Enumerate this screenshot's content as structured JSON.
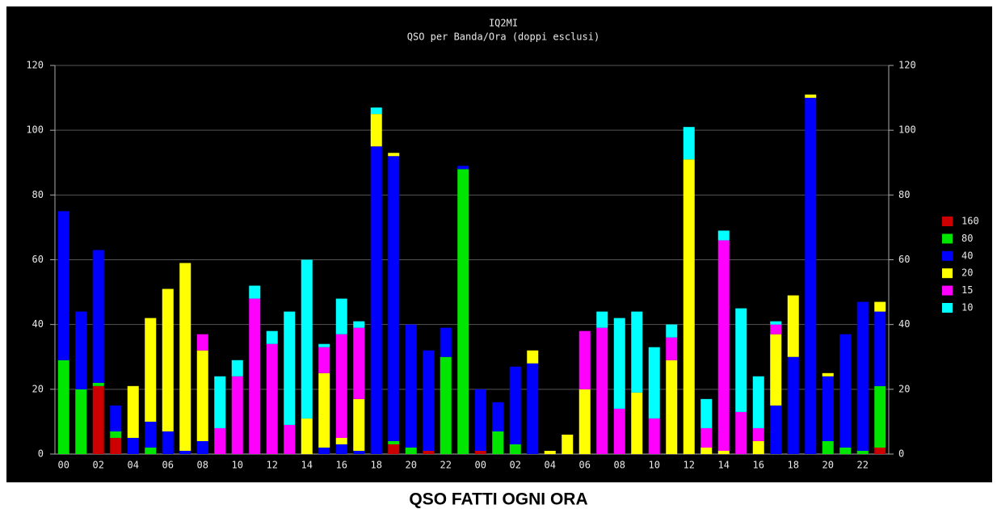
{
  "chart_data": {
    "type": "stacked_bar",
    "title": "IQ2MI",
    "subtitle": "QSO per Banda/Ora (doppi esclusi)",
    "caption": "QSO FATTI OGNI ORA",
    "categories": [
      "00",
      null,
      "02",
      null,
      "04",
      null,
      "06",
      null,
      "08",
      null,
      "10",
      null,
      "12",
      null,
      "14",
      null,
      "16",
      null,
      "18",
      null,
      "20",
      null,
      "22",
      null,
      "00",
      null,
      "02",
      null,
      "04",
      null,
      "06",
      null,
      "08",
      null,
      "10",
      null,
      "12",
      null,
      "14",
      null,
      "16",
      null,
      "18",
      null,
      "20",
      null,
      "22",
      null
    ],
    "series": [
      {
        "name": "160",
        "color": "#cc0000",
        "values": [
          0,
          0,
          21,
          5,
          0,
          0,
          0,
          0,
          0,
          0,
          0,
          0,
          0,
          0,
          0,
          0,
          0,
          0,
          0,
          3,
          0,
          1,
          0,
          0,
          1,
          0,
          0,
          0,
          0,
          0,
          0,
          0,
          0,
          0,
          0,
          0,
          0,
          0,
          0,
          0,
          0,
          0,
          0,
          0,
          0,
          0,
          0,
          2
        ]
      },
      {
        "name": "80",
        "color": "#00e600",
        "values": [
          29,
          20,
          1,
          2,
          0,
          2,
          0,
          0,
          0,
          0,
          0,
          0,
          0,
          0,
          0,
          0,
          0,
          0,
          0,
          1,
          2,
          0,
          30,
          88,
          0,
          7,
          3,
          0,
          0,
          0,
          0,
          0,
          0,
          0,
          0,
          0,
          0,
          0,
          0,
          0,
          0,
          0,
          0,
          0,
          4,
          2,
          1,
          19
        ]
      },
      {
        "name": "40",
        "color": "#0000ff",
        "values": [
          46,
          24,
          41,
          8,
          5,
          8,
          7,
          1,
          4,
          0,
          0,
          0,
          0,
          0,
          0,
          2,
          3,
          1,
          95,
          88,
          38,
          31,
          9,
          1,
          19,
          9,
          24,
          28,
          0,
          0,
          0,
          0,
          0,
          0,
          0,
          0,
          0,
          0,
          0,
          0,
          0,
          15,
          30,
          110,
          20,
          35,
          46,
          23
        ]
      },
      {
        "name": "20",
        "color": "#ffff00",
        "values": [
          0,
          0,
          0,
          0,
          16,
          32,
          44,
          58,
          28,
          0,
          0,
          0,
          0,
          0,
          11,
          23,
          2,
          16,
          10,
          1,
          0,
          0,
          0,
          0,
          0,
          0,
          0,
          4,
          1,
          6,
          20,
          0,
          0,
          19,
          0,
          29,
          91,
          2,
          1,
          0,
          4,
          22,
          19,
          1,
          1,
          0,
          0,
          3
        ]
      },
      {
        "name": "15",
        "color": "#ff00ff",
        "values": [
          0,
          0,
          0,
          0,
          0,
          0,
          0,
          0,
          5,
          8,
          24,
          48,
          34,
          9,
          0,
          8,
          32,
          22,
          0,
          0,
          0,
          0,
          0,
          0,
          0,
          0,
          0,
          0,
          0,
          0,
          18,
          39,
          14,
          0,
          11,
          7,
          0,
          6,
          65,
          13,
          4,
          3,
          0,
          0,
          0,
          0,
          0,
          0
        ]
      },
      {
        "name": "10",
        "color": "#00ffff",
        "values": [
          0,
          0,
          0,
          0,
          0,
          0,
          0,
          0,
          0,
          16,
          5,
          4,
          4,
          35,
          49,
          1,
          11,
          2,
          2,
          0,
          0,
          0,
          0,
          0,
          0,
          0,
          0,
          0,
          0,
          0,
          0,
          5,
          28,
          25,
          22,
          4,
          10,
          9,
          3,
          32,
          16,
          1,
          0,
          0,
          0,
          0,
          0,
          0
        ]
      }
    ],
    "ylim": [
      0,
      120
    ],
    "yticks": [
      0,
      20,
      40,
      60,
      80,
      100,
      120
    ],
    "y2lim": [
      0,
      120
    ],
    "y2ticks": [
      0,
      20,
      40,
      60,
      80,
      100,
      120
    ],
    "grid": true,
    "legend": "right"
  }
}
